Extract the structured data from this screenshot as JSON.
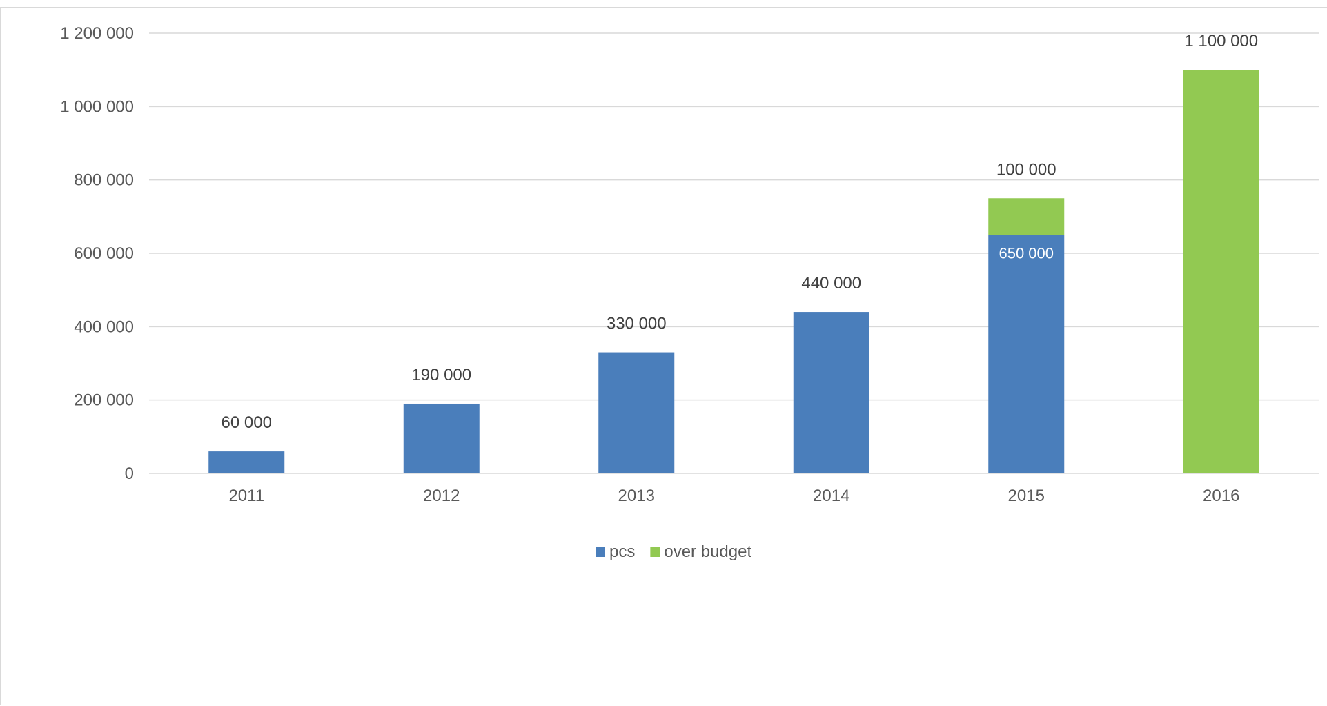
{
  "chart_data": {
    "type": "bar",
    "stacked": true,
    "title": "",
    "xlabel": "",
    "ylabel": "",
    "categories": [
      "2011",
      "2012",
      "2013",
      "2014",
      "2015",
      "2016"
    ],
    "series": [
      {
        "name": "pcs",
        "color": "#4a7ebb",
        "values": [
          60000,
          190000,
          330000,
          440000,
          650000,
          0
        ],
        "labels": [
          "60 000",
          "190 000",
          "330 000",
          "440 000",
          "650 000",
          ""
        ]
      },
      {
        "name": "over budget",
        "color": "#92c952",
        "values": [
          0,
          0,
          0,
          0,
          100000,
          1100000
        ],
        "labels": [
          "",
          "",
          "",
          "",
          "100 000",
          "1 100 000"
        ]
      }
    ],
    "ylim": [
      0,
      1200000
    ],
    "yticks": [
      0,
      200000,
      400000,
      600000,
      800000,
      1000000,
      1200000
    ],
    "ytick_labels": [
      "0",
      "200 000",
      "400 000",
      "600 000",
      "800 000",
      "1 000 000",
      "1 200 000"
    ],
    "grid": true,
    "legend_position": "bottom"
  }
}
